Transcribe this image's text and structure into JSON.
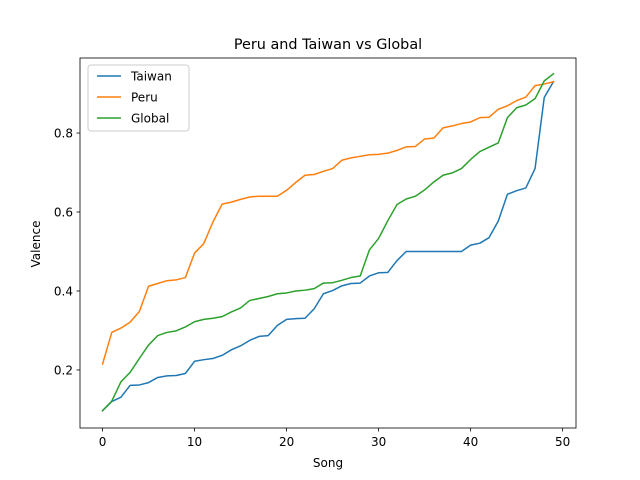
{
  "chart_data": {
    "type": "line",
    "title": "Peru and Taiwan vs Global",
    "xlabel": "Song",
    "ylabel": "Valence",
    "xlim": [
      -2.45,
      51.45
    ],
    "ylim": [
      0.053,
      0.99
    ],
    "xticks": [
      0,
      10,
      20,
      30,
      40,
      50
    ],
    "yticks": [
      0.2,
      0.4,
      0.6,
      0.8
    ],
    "xtick_labels": [
      "0",
      "10",
      "20",
      "30",
      "40",
      "50"
    ],
    "ytick_labels": [
      "0.2",
      "0.4",
      "0.6",
      "0.8"
    ],
    "grid": false,
    "legend_position": "top-left",
    "series": [
      {
        "name": "Taiwan",
        "color": "#1f77b4",
        "x": [
          0,
          1,
          2,
          3,
          4,
          5,
          6,
          7,
          8,
          9,
          10,
          11,
          12,
          13,
          14,
          15,
          16,
          17,
          18,
          19,
          20,
          21,
          22,
          23,
          24,
          25,
          26,
          27,
          28,
          29,
          30,
          31,
          32,
          33,
          34,
          35,
          36,
          37,
          38,
          39,
          40,
          41,
          42,
          43,
          44,
          45,
          46,
          47,
          48,
          49
        ],
        "y": [
          0.097,
          0.12,
          0.131,
          0.161,
          0.162,
          0.168,
          0.181,
          0.185,
          0.186,
          0.191,
          0.222,
          0.226,
          0.229,
          0.237,
          0.251,
          0.261,
          0.275,
          0.285,
          0.287,
          0.313,
          0.328,
          0.33,
          0.331,
          0.355,
          0.393,
          0.401,
          0.413,
          0.419,
          0.42,
          0.438,
          0.446,
          0.447,
          0.477,
          0.5,
          0.5,
          0.5,
          0.5,
          0.5,
          0.5,
          0.5,
          0.516,
          0.521,
          0.535,
          0.577,
          0.645,
          0.654,
          0.661,
          0.71,
          0.89,
          0.93
        ]
      },
      {
        "name": "Peru",
        "color": "#ff7f0e",
        "x": [
          0,
          1,
          2,
          3,
          4,
          5,
          6,
          7,
          8,
          9,
          10,
          11,
          12,
          13,
          14,
          15,
          16,
          17,
          18,
          19,
          20,
          21,
          22,
          23,
          24,
          25,
          26,
          27,
          28,
          29,
          30,
          31,
          32,
          33,
          34,
          35,
          36,
          37,
          38,
          39,
          40,
          41,
          42,
          43,
          44,
          45,
          46,
          47,
          48,
          49
        ],
        "y": [
          0.215,
          0.295,
          0.306,
          0.321,
          0.348,
          0.412,
          0.419,
          0.426,
          0.428,
          0.434,
          0.496,
          0.52,
          0.575,
          0.62,
          0.625,
          0.632,
          0.638,
          0.64,
          0.64,
          0.64,
          0.655,
          0.675,
          0.693,
          0.695,
          0.703,
          0.71,
          0.731,
          0.737,
          0.741,
          0.745,
          0.746,
          0.749,
          0.756,
          0.765,
          0.766,
          0.785,
          0.787,
          0.813,
          0.818,
          0.824,
          0.828,
          0.839,
          0.84,
          0.86,
          0.869,
          0.882,
          0.891,
          0.92,
          0.924,
          0.93
        ]
      },
      {
        "name": "Global",
        "color": "#2ca02c",
        "x": [
          0,
          1,
          2,
          3,
          4,
          5,
          6,
          7,
          8,
          9,
          10,
          11,
          12,
          13,
          14,
          15,
          16,
          17,
          18,
          19,
          20,
          21,
          22,
          23,
          24,
          25,
          26,
          27,
          28,
          29,
          30,
          31,
          32,
          33,
          34,
          35,
          36,
          37,
          38,
          39,
          40,
          41,
          42,
          43,
          44,
          45,
          46,
          47,
          48,
          49
        ],
        "y": [
          0.097,
          0.121,
          0.17,
          0.194,
          0.229,
          0.263,
          0.287,
          0.295,
          0.299,
          0.309,
          0.322,
          0.328,
          0.331,
          0.335,
          0.347,
          0.357,
          0.376,
          0.381,
          0.386,
          0.393,
          0.395,
          0.4,
          0.402,
          0.406,
          0.42,
          0.421,
          0.427,
          0.434,
          0.438,
          0.504,
          0.533,
          0.578,
          0.619,
          0.633,
          0.64,
          0.656,
          0.676,
          0.693,
          0.699,
          0.71,
          0.733,
          0.753,
          0.764,
          0.775,
          0.839,
          0.864,
          0.871,
          0.887,
          0.932,
          0.95
        ]
      }
    ]
  }
}
